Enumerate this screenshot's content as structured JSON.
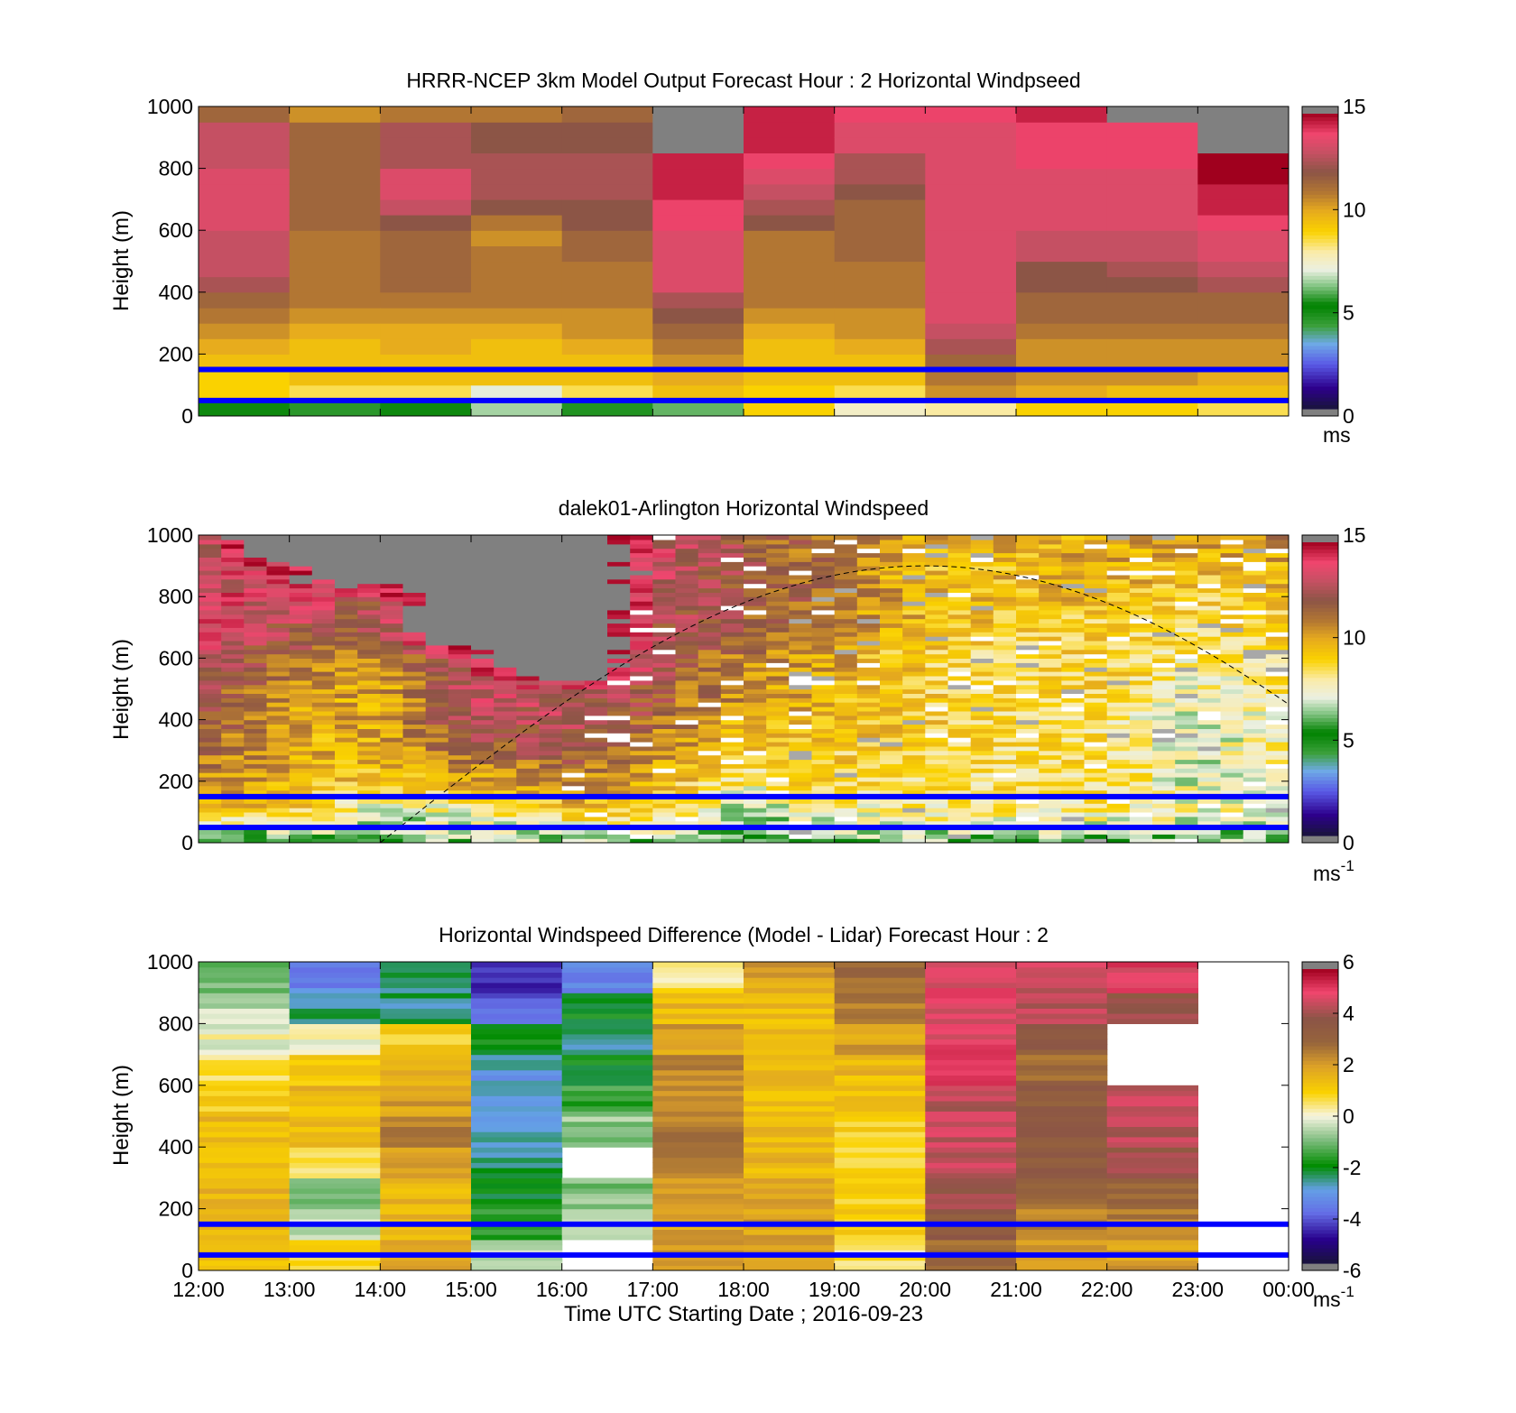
{
  "chart_data": [
    {
      "type": "heatmap",
      "title": "HRRR-NCEP 3km Model Output   Forecast Hour : 2 Horizontal Windpseed",
      "ylabel": "Height (m)",
      "xlabel": "",
      "ylim": [
        0,
        1000
      ],
      "yticks": [
        "0",
        "200",
        "400",
        "600",
        "800",
        "1000"
      ],
      "colorbar": {
        "ticks": [
          "0",
          "5",
          "10",
          "15"
        ],
        "range": [
          0,
          15
        ],
        "unit": "ms",
        "colormap": "wind"
      },
      "reference_lines_m": [
        50,
        150
      ],
      "x_hours": [
        12,
        13,
        14,
        15,
        16,
        17,
        18,
        19,
        20,
        21,
        22,
        23
      ],
      "height_levels_m": [
        0,
        50,
        100,
        150,
        200,
        250,
        300,
        350,
        400,
        450,
        500,
        550,
        600,
        650,
        700,
        750,
        800,
        850,
        900,
        950,
        1000
      ],
      "values_ms": [
        [
          5,
          4.5,
          5,
          6.5,
          5.5,
          6,
          9,
          7.5,
          8,
          9,
          9,
          8.5
        ],
        [
          9,
          8.5,
          8.5,
          7,
          8.5,
          9.5,
          9,
          8.5,
          10.5,
          10,
          9.5,
          9.5
        ],
        [
          9,
          9.5,
          9.5,
          9.5,
          9.5,
          10,
          9.5,
          9.5,
          11,
          10.5,
          10.5,
          10
        ],
        [
          9.5,
          9.5,
          9.5,
          9.5,
          9.5,
          10.5,
          9.5,
          9.5,
          11.5,
          10.5,
          10.5,
          10.5
        ],
        [
          10,
          9.5,
          10,
          9.5,
          10,
          11,
          9.5,
          10,
          12.5,
          10.5,
          10.5,
          10.5
        ],
        [
          10.5,
          10,
          10,
          10,
          10.5,
          11.5,
          10,
          10.5,
          13,
          11,
          11,
          11
        ],
        [
          11,
          10.5,
          10.5,
          10.5,
          10.5,
          12,
          10.5,
          10.5,
          13.5,
          11.5,
          11.5,
          11.5
        ],
        [
          11.5,
          11,
          11,
          11,
          11,
          12.5,
          11,
          11,
          13.5,
          11.5,
          11.5,
          11.5
        ],
        [
          12.5,
          11,
          11.5,
          11,
          11,
          13.5,
          11,
          11,
          13.5,
          12,
          12,
          12.5
        ],
        [
          13,
          11,
          11.5,
          11,
          11,
          13.5,
          11,
          11,
          13.5,
          12,
          12.5,
          13
        ],
        [
          13,
          11,
          11.5,
          11,
          11.5,
          13.5,
          11,
          11.5,
          13.5,
          13,
          13,
          13.5
        ],
        [
          13,
          11,
          11.5,
          10.5,
          11.5,
          13.5,
          11,
          11.5,
          13.5,
          13,
          13,
          13.5
        ],
        [
          13.5,
          11.5,
          12,
          11,
          12,
          14,
          12,
          11.5,
          13.5,
          13.5,
          13.5,
          14
        ],
        [
          13.5,
          11.5,
          13,
          12,
          12,
          14,
          12.5,
          11.5,
          13.5,
          13.5,
          13.5,
          14.5
        ],
        [
          13.5,
          11.5,
          13.5,
          12.5,
          12.5,
          14.5,
          13,
          12,
          13.5,
          13.5,
          13.5,
          14.5
        ],
        [
          13.5,
          11.5,
          13.5,
          12.5,
          12.5,
          14.5,
          13.5,
          12.5,
          13.5,
          13.5,
          13.5,
          15
        ],
        [
          13,
          11.5,
          12.5,
          12.5,
          12.5,
          14.5,
          14,
          12.5,
          13.5,
          14,
          14,
          15
        ],
        [
          13,
          11.5,
          12.5,
          12,
          12,
          16,
          14.5,
          13.5,
          13.5,
          14,
          14,
          16
        ],
        [
          13,
          11.5,
          12.5,
          12,
          12,
          16,
          14.5,
          13.5,
          13.5,
          14,
          14,
          16
        ],
        [
          11.5,
          10.5,
          11,
          11,
          11.5,
          16,
          14.5,
          14,
          14,
          14.5,
          16,
          20
        ],
        [
          11.5,
          10.5,
          11,
          11,
          11.5,
          16,
          14.5,
          14,
          14,
          14.5,
          16,
          20
        ]
      ]
    },
    {
      "type": "heatmap",
      "title": "dalek01-Arlington  Horizontal Windspeed",
      "ylabel": "Height (m)",
      "xlabel": "",
      "ylim": [
        0,
        1000
      ],
      "yticks": [
        "0",
        "200",
        "400",
        "600",
        "800",
        "1000"
      ],
      "colorbar": {
        "ticks": [
          "0",
          "5",
          "10",
          "15"
        ],
        "range": [
          0,
          15
        ],
        "unit": "ms",
        "unit_exponent": "-1",
        "colormap": "wind"
      },
      "reference_lines_m": [
        50,
        150
      ],
      "overlay_curve": "dashed arc, ~0 m at 14:00, ~900 m at 20:00, ~430 m at 00:00",
      "time_columns": 48,
      "height_levels_m": [
        0,
        100,
        200,
        300,
        400,
        500,
        600,
        700,
        800,
        900,
        1000
      ],
      "keyframe_hours": [
        12,
        13,
        14,
        15,
        16,
        17,
        18,
        19,
        20,
        21,
        22,
        23,
        24
      ],
      "keyframe_values_ms": [
        [
          5,
          5.5,
          6,
          6.5,
          6,
          6,
          5.5,
          6,
          6,
          6,
          6,
          6,
          6
        ],
        [
          9,
          9,
          7,
          7.5,
          9,
          9,
          6.5,
          7.5,
          8,
          8,
          8,
          7.5,
          7.5
        ],
        [
          10.5,
          10,
          9,
          10,
          11,
          10,
          8,
          9,
          8.5,
          8.5,
          8.5,
          7,
          7.5
        ],
        [
          11.5,
          10,
          10,
          11.5,
          12,
          10.5,
          9,
          9,
          9,
          8.5,
          8.5,
          7,
          8
        ],
        [
          12,
          10,
          10,
          12.5,
          13,
          11.5,
          10,
          9.5,
          9,
          8.5,
          8.5,
          7,
          8
        ],
        [
          12.5,
          10.5,
          10,
          13,
          13,
          12,
          10.5,
          10,
          9,
          8.5,
          9,
          7.5,
          8.5
        ],
        [
          13,
          11.5,
          10.5,
          13.5,
          20,
          12.5,
          11,
          10,
          9,
          8.5,
          9,
          8,
          8.5
        ],
        [
          13.5,
          12.5,
          12,
          20,
          20,
          12.5,
          11.5,
          10.5,
          9.5,
          9,
          9,
          8.5,
          9
        ],
        [
          13.5,
          13.5,
          12.5,
          20,
          20,
          13,
          12,
          11,
          9.5,
          9.5,
          9.5,
          9,
          9.5
        ],
        [
          13,
          14,
          20,
          20,
          20,
          13.5,
          12,
          11,
          9.5,
          9.5,
          10,
          9.5,
          10
        ],
        [
          12,
          20,
          20,
          20,
          20,
          13,
          12,
          11,
          10,
          10,
          10,
          10,
          11
        ]
      ]
    },
    {
      "type": "heatmap",
      "title": "Horizontal Windspeed Difference (Model - Lidar) Forecast Hour : 2",
      "ylabel": "Height (m)",
      "xlabel": "Time UTC  Starting Date ; 2016-09-23",
      "xticks": [
        "12:00",
        "13:00",
        "14:00",
        "15:00",
        "16:00",
        "17:00",
        "18:00",
        "19:00",
        "20:00",
        "21:00",
        "22:00",
        "23:00",
        "00:00"
      ],
      "ylim": [
        0,
        1000
      ],
      "yticks": [
        "0",
        "200",
        "400",
        "600",
        "800",
        "1000"
      ],
      "colorbar": {
        "ticks": [
          "-6",
          "-4",
          "-2",
          "0",
          "2",
          "4",
          "6"
        ],
        "range": [
          -6,
          6
        ],
        "unit": "ms",
        "unit_exponent": "-1",
        "colormap": "diff"
      },
      "reference_lines_m": [
        50,
        150
      ],
      "x_hours": [
        12,
        13,
        14,
        15,
        16,
        17,
        18,
        19,
        20,
        21,
        22
      ],
      "height_levels_m": [
        0,
        100,
        200,
        300,
        400,
        500,
        600,
        700,
        800,
        900,
        1000
      ],
      "values_ms": [
        [
          1.5,
          1,
          2,
          -0.5,
          null,
          2,
          2,
          0.5,
          3,
          2,
          2
        ],
        [
          1.5,
          -0.5,
          1.5,
          -1.5,
          -0.3,
          2,
          2,
          1,
          3.5,
          2.5,
          2.5
        ],
        [
          1.5,
          -0.8,
          1.5,
          -2,
          -1,
          2,
          2,
          1,
          4,
          3,
          3
        ],
        [
          1.5,
          0.5,
          2,
          -2.5,
          null,
          2.5,
          1.5,
          1,
          4.5,
          3.5,
          4
        ],
        [
          1.5,
          1.5,
          2.5,
          -3,
          -0.8,
          2.5,
          1.5,
          1,
          4.5,
          3.5,
          4.5
        ],
        [
          1,
          1.5,
          2,
          -3,
          -1.5,
          2.5,
          1.5,
          1.5,
          4.5,
          3.5,
          4.5
        ],
        [
          0.5,
          1,
          1.5,
          -3,
          -2,
          2.5,
          1.5,
          1.5,
          5,
          3,
          null
        ],
        [
          0,
          0,
          1,
          -2,
          -2.5,
          2,
          1.5,
          2,
          5,
          3.5,
          null
        ],
        [
          -0.5,
          -2.5,
          -2.5,
          -4,
          -2,
          1.5,
          1.5,
          2.5,
          5,
          4.5,
          4
        ],
        [
          -1,
          -3.5,
          -2.5,
          -4.5,
          -3.5,
          0.5,
          2,
          3,
          5,
          4.5,
          5
        ],
        [
          null,
          null,
          -3.5,
          null,
          -6,
          1.5,
          2.5,
          3,
          5,
          4.5,
          null
        ]
      ]
    }
  ]
}
